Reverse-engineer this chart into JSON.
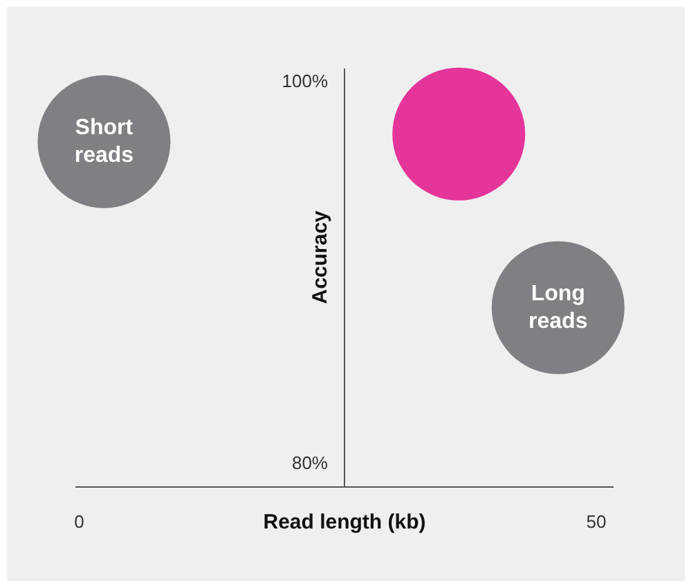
{
  "chart_data": {
    "type": "bubble",
    "xlabel": "Read length (kb)",
    "ylabel": "Accuracy",
    "xlim": [
      -0.3,
      51.6
    ],
    "xticks": [
      0,
      50
    ],
    "ylim": [
      78.8,
      100.7
    ],
    "yticks": [
      {
        "value": 80,
        "label": "80%"
      },
      {
        "value": 100,
        "label": "100%"
      }
    ],
    "series": [
      {
        "name": "Short reads",
        "color": "#808084",
        "x": [
          2.4
        ],
        "values": [
          96.9
        ],
        "sizes": [
          1
        ]
      },
      {
        "color": "#e5359a",
        "x": [
          36.7
        ],
        "values": [
          97.3
        ],
        "sizes": [
          1
        ]
      },
      {
        "name": "Long reads",
        "color": "#808084",
        "x": [
          46.3
        ],
        "values": [
          88.2
        ],
        "sizes": [
          1
        ]
      }
    ]
  }
}
